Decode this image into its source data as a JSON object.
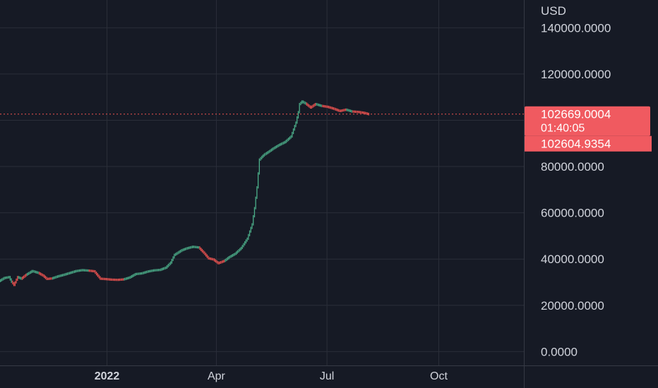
{
  "chart_data": {
    "type": "line",
    "currency_label": "USD",
    "y_tick_labels": [
      "140000.0000",
      "120000.0000",
      "80000.0000",
      "60000.0000",
      "40000.0000",
      "20000.0000",
      "0.0000"
    ],
    "y_ticks": [
      140000,
      120000,
      80000,
      60000,
      40000,
      20000,
      0
    ],
    "y_gridlines": [
      140000,
      120000,
      100000,
      80000,
      60000,
      40000,
      20000,
      0
    ],
    "ylim": [
      -6000,
      152000
    ],
    "x_tick_labels": [
      "2022",
      "Apr",
      "Jul",
      "Oct"
    ],
    "x_ticks": [
      "2022-01-01",
      "2022-04-01",
      "2022-07-01",
      "2022-10-01"
    ],
    "xlim": [
      "2021-10-05",
      "2022-12-10"
    ],
    "grid": true,
    "colors": {
      "up": "#26a69a",
      "up_candle": "#4caf8a",
      "down": "#ef5350",
      "background": "#161a25",
      "grid": "#2a2e39",
      "axis_text": "#d1d4dc"
    },
    "last_price": {
      "value": 102669.0004,
      "label": "102669.0004",
      "countdown": "01:40:05"
    },
    "secondary_price": {
      "value": 102604.9354,
      "label": "102604.9354"
    },
    "series": [
      {
        "x": [
          "2021-10-05",
          "2021-10-09",
          "2021-10-13",
          "2021-10-15",
          "2021-10-17",
          "2021-10-20",
          "2021-10-23",
          "2021-10-27",
          "2021-11-01",
          "2021-11-06",
          "2021-11-10",
          "2021-11-13",
          "2021-11-17",
          "2021-11-22",
          "2021-11-27",
          "2021-12-02",
          "2021-12-07",
          "2021-12-12",
          "2021-12-17",
          "2021-12-22",
          "2021-12-27",
          "2022-01-01",
          "2022-01-05",
          "2022-01-10",
          "2022-01-15",
          "2022-01-20",
          "2022-01-25",
          "2022-01-30",
          "2022-02-04",
          "2022-02-09",
          "2022-02-14",
          "2022-02-19",
          "2022-02-23",
          "2022-02-26",
          "2022-03-01",
          "2022-03-04",
          "2022-03-08",
          "2022-03-13",
          "2022-03-18",
          "2022-03-22",
          "2022-03-26",
          "2022-03-30",
          "2022-04-03",
          "2022-04-08",
          "2022-04-12",
          "2022-04-17",
          "2022-04-22",
          "2022-04-27",
          "2022-05-01",
          "2022-05-03",
          "2022-05-05",
          "2022-05-07",
          "2022-05-09",
          "2022-05-11",
          "2022-05-14",
          "2022-05-18",
          "2022-05-23",
          "2022-05-28",
          "2022-06-02",
          "2022-06-06",
          "2022-06-08",
          "2022-06-09",
          "2022-06-11",
          "2022-06-14",
          "2022-06-18",
          "2022-06-22",
          "2022-06-27",
          "2022-07-02",
          "2022-07-07",
          "2022-07-12",
          "2022-07-17",
          "2022-07-22",
          "2022-07-27",
          "2022-08-01",
          "2022-08-05"
        ],
        "values": [
          30500,
          31800,
          32200,
          30200,
          28800,
          32200,
          31500,
          33200,
          34800,
          34000,
          32800,
          31400,
          31600,
          32500,
          33200,
          34000,
          34800,
          35200,
          35000,
          34700,
          31500,
          31300,
          31100,
          31000,
          31200,
          32000,
          33500,
          33800,
          34600,
          35100,
          35300,
          36300,
          38500,
          41800,
          42800,
          43800,
          44600,
          45300,
          45000,
          42800,
          40300,
          39800,
          38200,
          39200,
          40800,
          42300,
          44800,
          48800,
          55000,
          62000,
          71000,
          83000,
          84200,
          85200,
          86200,
          87700,
          89300,
          90600,
          93000,
          99000,
          103500,
          107000,
          108100,
          107200,
          105500,
          107000,
          106200,
          105800,
          105000,
          104000,
          104600,
          103800,
          103600,
          103200,
          102600
        ],
        "directions": [
          "up",
          "up",
          "up",
          "down",
          "down",
          "up",
          "down",
          "up",
          "up",
          "down",
          "down",
          "down",
          "up",
          "up",
          "up",
          "up",
          "up",
          "up",
          "down",
          "down",
          "down",
          "down",
          "down",
          "down",
          "up",
          "up",
          "up",
          "up",
          "up",
          "up",
          "up",
          "up",
          "up",
          "up",
          "up",
          "up",
          "up",
          "up",
          "down",
          "down",
          "down",
          "down",
          "down",
          "up",
          "up",
          "up",
          "up",
          "up",
          "up",
          "up",
          "up",
          "up",
          "up",
          "up",
          "up",
          "up",
          "up",
          "up",
          "up",
          "up",
          "up",
          "up",
          "up",
          "down",
          "down",
          "up",
          "down",
          "down",
          "down",
          "down",
          "up",
          "down",
          "down",
          "down",
          "down"
        ]
      }
    ]
  }
}
